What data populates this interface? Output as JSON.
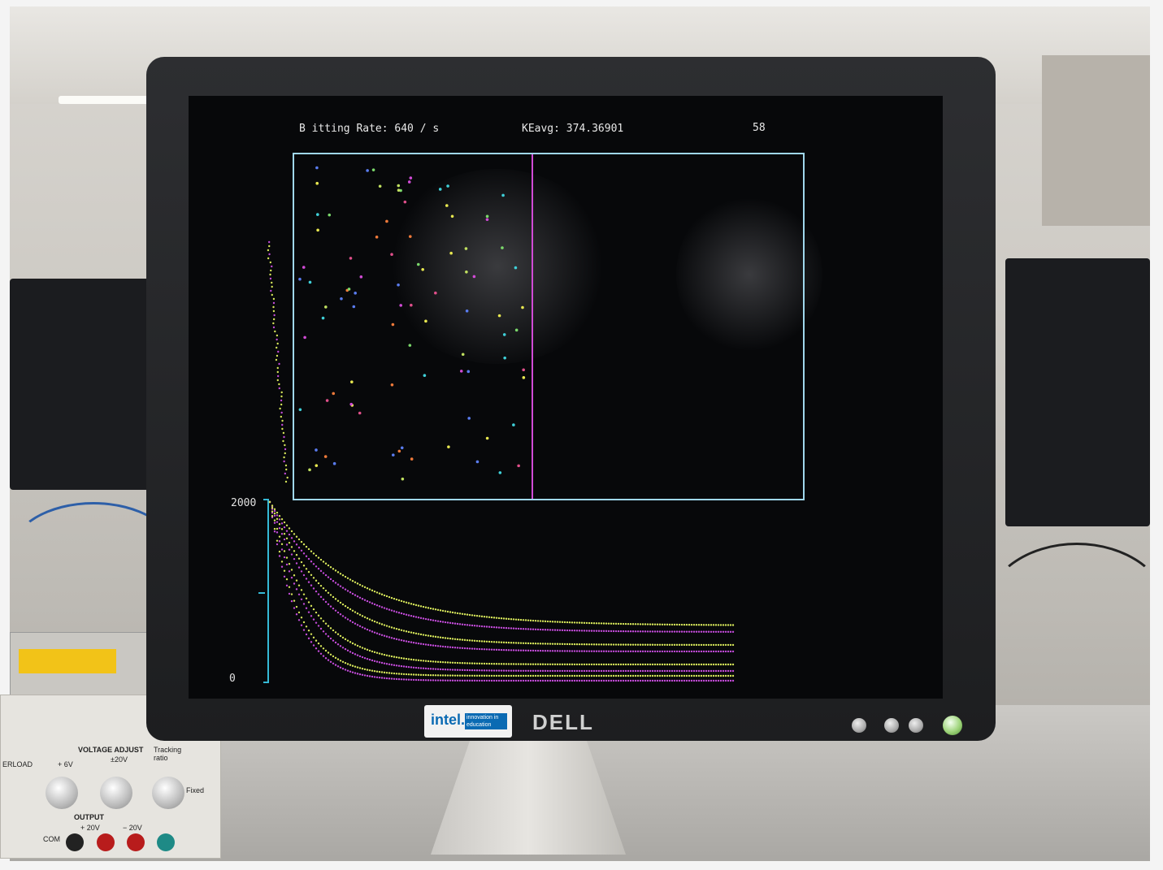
{
  "screen": {
    "hitting_rate_label": "B itting Rate:",
    "hitting_rate_value": "640",
    "hitting_rate_unit": "/ s",
    "keavg_label": "KEavg:",
    "keavg_value": "374.36901",
    "corner_value": "58"
  },
  "graph": {
    "y_max_label": "2000",
    "y_min_label": "0"
  },
  "bezel": {
    "brand": "DELL",
    "badge_logo": "intel.",
    "badge_text": "innovation in education"
  },
  "psu": {
    "title": "VOLTAGE ADJUST",
    "tracking": "Tracking ratio",
    "p6": "+ 6V",
    "pm20": "±20V",
    "output": "OUTPUT",
    "p20": "+ 20V",
    "m20": "− 20V",
    "com": "COM",
    "fixed": "Fixed",
    "overload": "ERLOAD"
  },
  "colors": {
    "box": "#9fd7ec",
    "piston": "#d14bd6",
    "curve_purple": "#c24bd8",
    "curve_yellow": "#d6e65a"
  }
}
